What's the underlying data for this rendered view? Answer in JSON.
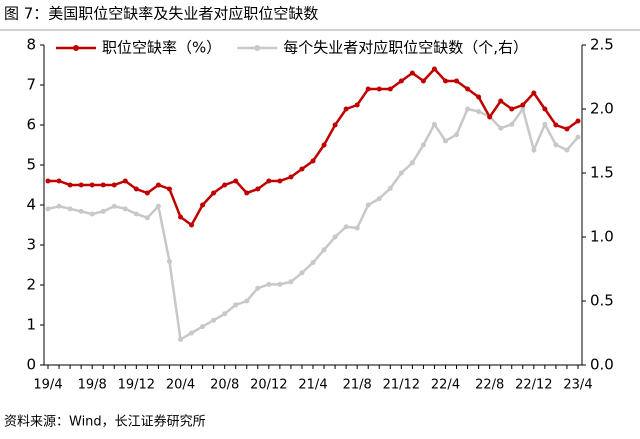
{
  "chart_data": {
    "type": "line",
    "title": "图 7：美国职位空缺率及失业者对应职位空缺数",
    "source": "资料来源：Wind，长江证券研究所",
    "categories": [
      "19/4",
      null,
      null,
      null,
      "19/8",
      null,
      null,
      null,
      "19/12",
      null,
      null,
      null,
      "20/4",
      null,
      null,
      null,
      "20/8",
      null,
      null,
      null,
      "20/12",
      null,
      null,
      null,
      "21/4",
      null,
      null,
      null,
      "21/8",
      null,
      null,
      null,
      "21/12",
      null,
      null,
      null,
      "22/4",
      null,
      null,
      null,
      "22/8",
      null,
      null,
      null,
      "22/12",
      null,
      null,
      null,
      "23/4"
    ],
    "series": [
      {
        "name": "职位空缺率（%）",
        "color": "#c00000",
        "axis": "y",
        "values": [
          4.6,
          4.6,
          4.5,
          4.5,
          4.5,
          4.5,
          4.5,
          4.6,
          4.4,
          4.3,
          4.5,
          4.4,
          3.7,
          3.5,
          4.0,
          4.3,
          4.5,
          4.6,
          4.3,
          4.4,
          4.6,
          4.6,
          4.7,
          4.9,
          5.1,
          5.5,
          6.0,
          6.4,
          6.5,
          6.9,
          6.9,
          6.9,
          7.1,
          7.3,
          7.1,
          7.4,
          7.1,
          7.1,
          6.9,
          6.7,
          6.2,
          6.6,
          6.4,
          6.5,
          6.8,
          6.4,
          6.0,
          5.9,
          6.1
        ]
      },
      {
        "name": "每个失业者对应职位空缺数（个,右）",
        "color": "#c8c8c8",
        "axis": "y2",
        "values": [
          1.22,
          1.24,
          1.22,
          1.2,
          1.18,
          1.2,
          1.24,
          1.22,
          1.18,
          1.15,
          1.24,
          0.81,
          0.2,
          0.25,
          0.3,
          0.35,
          0.4,
          0.47,
          0.5,
          0.6,
          0.63,
          0.63,
          0.65,
          0.72,
          0.8,
          0.9,
          1.0,
          1.08,
          1.07,
          1.25,
          1.3,
          1.38,
          1.5,
          1.58,
          1.72,
          1.88,
          1.75,
          1.8,
          2.0,
          1.98,
          1.94,
          1.85,
          1.88,
          2.0,
          1.68,
          1.88,
          1.72,
          1.68,
          1.78
        ]
      }
    ],
    "ylim": [
      0,
      8
    ],
    "yticks": [
      0,
      1,
      2,
      3,
      4,
      5,
      6,
      7,
      8
    ],
    "y2lim": [
      0,
      2.5
    ],
    "y2ticks": [
      {
        "value": 0,
        "label": "0.0"
      },
      0.5,
      {
        "value": 1,
        "label": "1.0"
      },
      1.5,
      {
        "value": 2,
        "label": "2.0"
      },
      2.5
    ],
    "legend": "top"
  }
}
